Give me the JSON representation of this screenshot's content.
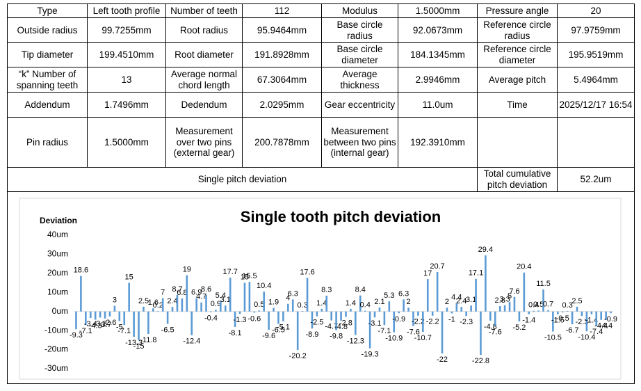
{
  "table": {
    "rows": [
      [
        "Type",
        "Left tooth profile",
        "Number of teeth",
        "112",
        "Modulus",
        "1.5000mm",
        "Pressure angle",
        "20"
      ],
      [
        "Outside radius",
        "99.7255mm",
        "Root radius",
        "95.9464mm",
        "Base circle radius",
        "92.0673mm",
        "Reference circle radius",
        "97.9759mm"
      ],
      [
        "Tip diameter",
        "199.4510mm",
        "Root diameter",
        "191.8928mm",
        "Base circle diameter",
        "184.1345mm",
        "Reference circle diameter",
        "195.9519mm"
      ],
      [
        "“k” Number of spanning teeth",
        "13",
        "Average normal chord length",
        "67.3064mm",
        "Average thickness",
        "2.9946mm",
        "Average pitch",
        "5.4964mm"
      ],
      [
        "Addendum",
        "1.7496mm",
        "Dedendum",
        "2.0295mm",
        "Gear eccentricity",
        "11.0um",
        "Time",
        "2025/12/17 16:54"
      ],
      [
        "Pin radius",
        "1.5000mm",
        "Measurement over two pins (external gear)",
        "200.7878mm",
        "Measurement between two pins (internal gear)",
        "192.3910mm"
      ],
      [
        "Single pitch deviation",
        "Total cumulative pitch deviation",
        "52.2um"
      ]
    ]
  },
  "chart": {
    "type": "bar",
    "title": "Single tooth pitch deviation",
    "y_label": "Deviation",
    "color": "#5b9bd5",
    "ylim": [
      -30,
      40
    ],
    "yticks": [
      {
        "value": -30,
        "label": "-30um"
      },
      {
        "value": -20,
        "label": "-20um"
      },
      {
        "value": -10,
        "label": "-10um"
      },
      {
        "value": 0,
        "label": "0um"
      },
      {
        "value": 10,
        "label": "10um"
      },
      {
        "value": 20,
        "label": "20um"
      },
      {
        "value": 30,
        "label": "30um"
      },
      {
        "value": 40,
        "label": "40um"
      }
    ],
    "values": [
      -9.3,
      18.6,
      -7.1,
      -3.4,
      -4.3,
      -3.2,
      -3.7,
      -2.6,
      3,
      -5,
      -7.1,
      15,
      -13.3,
      -15,
      2.5,
      -11.8,
      1.6,
      0.2,
      7,
      -6.5,
      2.4,
      8.7,
      6.8,
      19,
      -12.4,
      6.9,
      4.7,
      8.6,
      -0.4,
      0.9,
      5.4,
      3.1,
      17.7,
      -8.1,
      -1.3,
      15,
      15.5,
      -0.6,
      0.5,
      10.4,
      -9.6,
      1.9,
      -6.5,
      -5.1,
      4,
      6.3,
      -20.2,
      0.3,
      17.6,
      -8.9,
      -2.5,
      1.4,
      8.3,
      -4.7,
      -9.8,
      -4.8,
      -2.8,
      1.4,
      -12.3,
      8.4,
      0.4,
      -19.3,
      -3.1,
      2.1,
      -7.1,
      5.3,
      -10.9,
      -0.9,
      6.3,
      2,
      -7.6,
      -2.2,
      -10.7,
      17,
      -2.2,
      20.7,
      -22,
      2,
      -1,
      4.4,
      2.4,
      -2.3,
      3.1,
      17.1,
      -22.8,
      29.4,
      -4.8,
      -7.6,
      2.8,
      3.3,
      5,
      7.6,
      -5.2,
      20.4,
      -1.4,
      0.4,
      0.5,
      11.5,
      0.7,
      -10.5,
      -1.5,
      -0.5,
      0.3,
      -6.7,
      2.5,
      -2.3,
      -10.4,
      -1.4,
      -7.4,
      -4.4,
      -4.4,
      -0.9
    ]
  }
}
